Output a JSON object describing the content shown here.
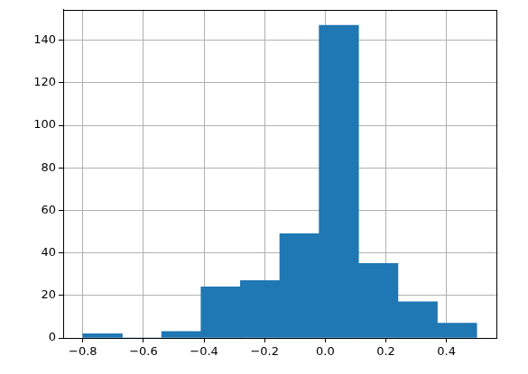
{
  "chart_data": {
    "type": "histogram",
    "bins": [
      -0.8,
      -0.67,
      -0.54,
      -0.41,
      -0.28,
      -0.15,
      -0.02,
      0.11,
      0.24,
      0.37,
      0.5
    ],
    "values": [
      2,
      0,
      3,
      24,
      27,
      49,
      147,
      35,
      17,
      7
    ],
    "color": "#1f77b4",
    "xlim": [
      -0.865,
      0.565
    ],
    "xticks": [
      {
        "value": -0.8,
        "label": "−0.8"
      },
      {
        "value": -0.6,
        "label": "−0.6"
      },
      {
        "value": -0.4,
        "label": "−0.4"
      },
      {
        "value": -0.2,
        "label": "−0.2"
      },
      {
        "value": 0,
        "label": "0.0"
      },
      0.2,
      0.4
    ],
    "ylim": [
      0,
      154.35
    ],
    "yticks": [
      0,
      20,
      40,
      60,
      80,
      100,
      120,
      140
    ],
    "grid": true
  }
}
